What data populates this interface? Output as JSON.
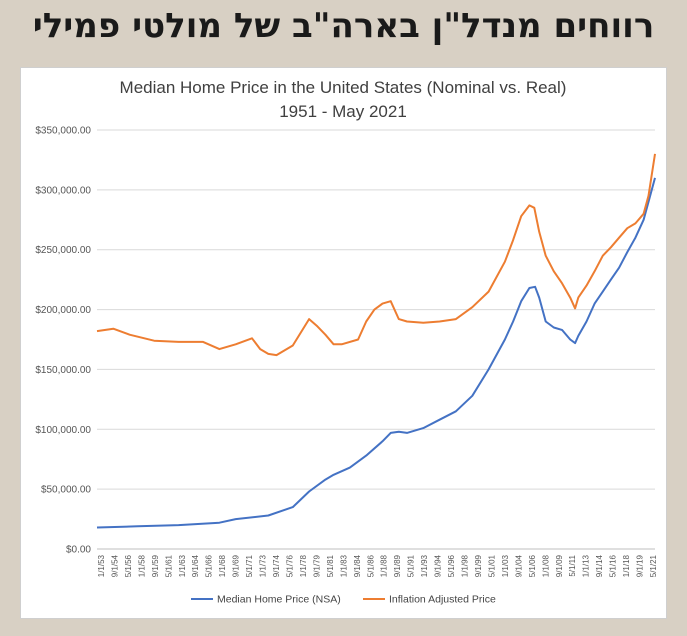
{
  "heading": "רווחים מנדל\"ן בארה\"ב של מולטי פמילי",
  "colors": {
    "nominal": "#4472c4",
    "real": "#ed7d31",
    "grid": "#d9d9d9"
  },
  "chart_data": {
    "type": "line",
    "title": "Median Home Price in the United States (Nominal vs. Real)",
    "subtitle": "1951 - May 2021",
    "xlabel": "",
    "ylabel": "",
    "ylim": [
      0,
      350000
    ],
    "grid": true,
    "legend_position": "bottom",
    "y_ticks": [
      "$0.00",
      "$50,000.00",
      "$100,000.00",
      "$150,000.00",
      "$200,000.00",
      "$250,000.00",
      "$300,000.00",
      "$350,000.00"
    ],
    "x_ticks": [
      "1/1/53",
      "9/1/54",
      "5/1/56",
      "1/1/58",
      "9/1/59",
      "5/1/61",
      "1/1/63",
      "9/1/64",
      "5/1/66",
      "1/1/68",
      "9/1/69",
      "5/1/71",
      "1/1/73",
      "9/1/74",
      "5/1/76",
      "1/1/78",
      "9/1/79",
      "5/1/81",
      "1/1/83",
      "9/1/84",
      "5/1/86",
      "1/1/88",
      "9/1/89",
      "5/1/91",
      "1/1/93",
      "9/1/94",
      "5/1/96",
      "1/1/98",
      "9/1/99",
      "5/1/01",
      "1/1/03",
      "9/1/04",
      "5/1/06",
      "1/1/08",
      "9/1/09",
      "5/1/11",
      "1/1/13",
      "9/1/14",
      "5/1/16",
      "1/1/18",
      "9/1/19",
      "5/1/21"
    ],
    "x_range": [
      1953.0,
      2021.4
    ],
    "series": [
      {
        "name": "Median Home Price (NSA)",
        "x": [
          1953,
          1958,
          1963,
          1968,
          1970,
          1974,
          1977,
          1979,
          1981,
          1982,
          1984,
          1986,
          1988,
          1989,
          1990,
          1991,
          1993,
          1995,
          1997,
          1999,
          2001,
          2003,
          2004,
          2005,
          2006,
          2006.7,
          2007.2,
          2008,
          2009,
          2010,
          2011,
          2011.6,
          2012,
          2013,
          2014,
          2015,
          2016,
          2017,
          2018,
          2019,
          2020,
          2020.6,
          2021.4
        ],
        "values": [
          18000,
          19000,
          20000,
          22000,
          25000,
          28000,
          35000,
          48000,
          58000,
          62000,
          68000,
          78000,
          90000,
          97000,
          98000,
          97000,
          101000,
          108000,
          115000,
          128000,
          150000,
          175000,
          190000,
          207000,
          218000,
          219000,
          210000,
          190000,
          185000,
          183000,
          175000,
          172000,
          178000,
          190000,
          205000,
          215000,
          225000,
          235000,
          248000,
          260000,
          275000,
          290000,
          310000
        ]
      },
      {
        "name": "Inflation Adjusted Price",
        "x": [
          1953,
          1955,
          1957,
          1960,
          1963,
          1966,
          1968,
          1970,
          1972,
          1973,
          1974,
          1975,
          1977,
          1979,
          1980,
          1981,
          1982,
          1983,
          1985,
          1986,
          1987,
          1988,
          1989,
          1990,
          1991,
          1993,
          1995,
          1997,
          1999,
          2001,
          2003,
          2004,
          2005,
          2006,
          2006.6,
          2007.2,
          2008,
          2009,
          2010,
          2011,
          2011.6,
          2012,
          2013,
          2014,
          2015,
          2016,
          2017,
          2018,
          2019,
          2020,
          2020.6,
          2021.4
        ],
        "values": [
          182000,
          184000,
          179000,
          174000,
          173000,
          173000,
          167000,
          171000,
          176000,
          167000,
          163000,
          162000,
          170000,
          192000,
          186000,
          179000,
          171000,
          171000,
          175000,
          190000,
          200000,
          205000,
          207000,
          192000,
          190000,
          189000,
          190000,
          192000,
          202000,
          215000,
          240000,
          258000,
          278000,
          287000,
          285000,
          265000,
          245000,
          232000,
          222000,
          210000,
          201000,
          210000,
          220000,
          232000,
          245000,
          252000,
          260000,
          268000,
          272000,
          280000,
          295000,
          330000
        ]
      }
    ]
  }
}
